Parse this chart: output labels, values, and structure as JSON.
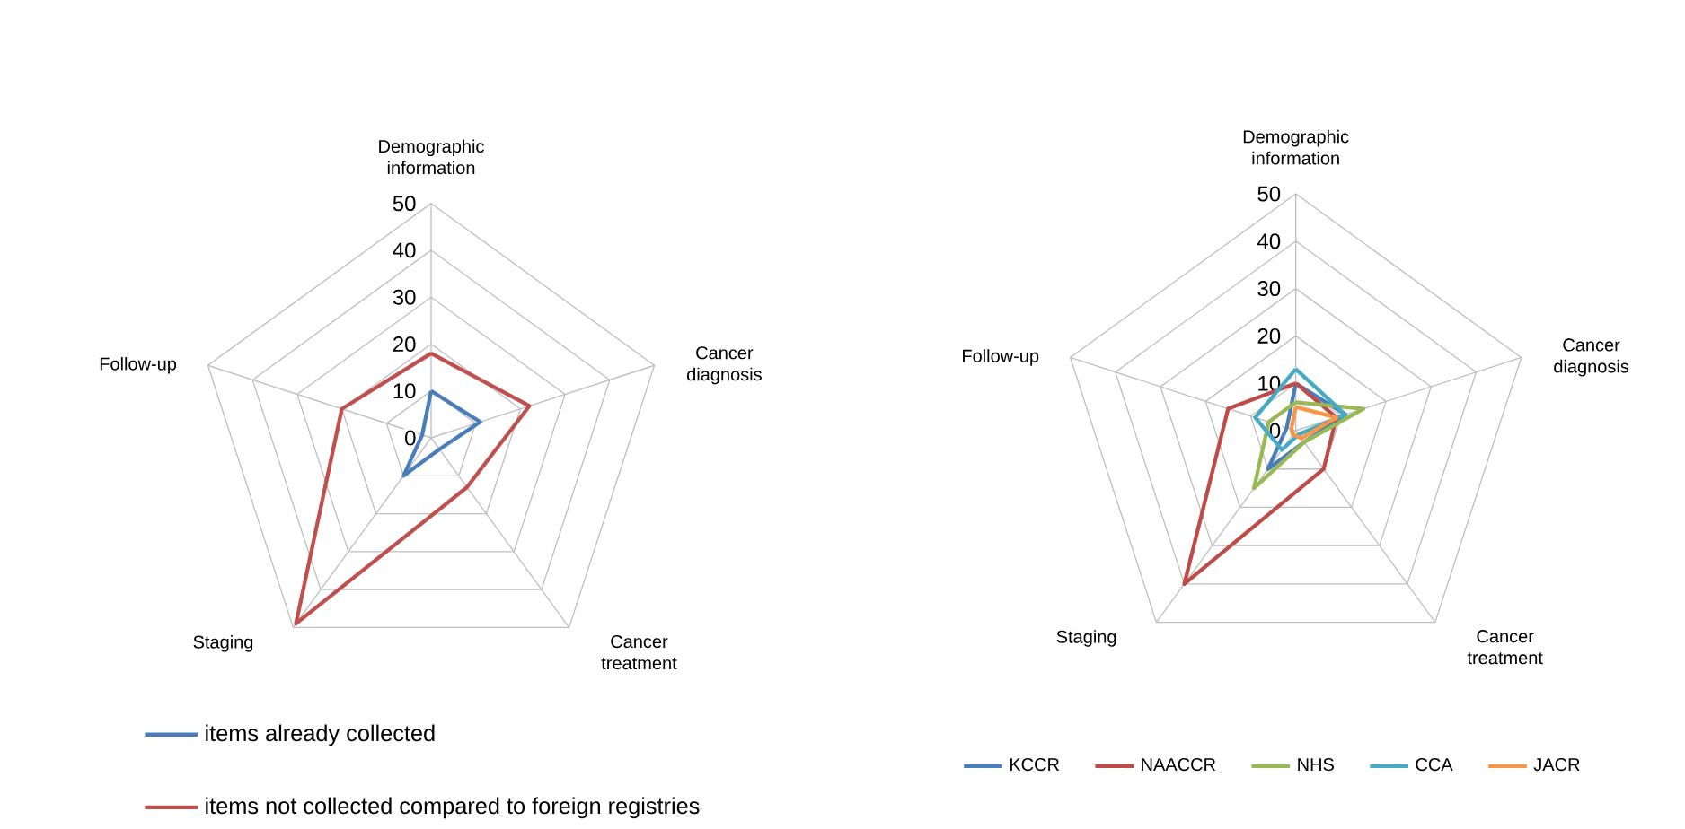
{
  "chart_data": [
    {
      "type": "radar",
      "categories": [
        "Demographic information",
        "Cancer diagnosis",
        "Cancer treatment",
        "Staging",
        "Follow-up"
      ],
      "ylim": [
        0,
        50
      ],
      "yticks": [
        0,
        10,
        20,
        30,
        40,
        50
      ],
      "grid": true,
      "legend": "bottom",
      "series": [
        {
          "name": "items already collected",
          "color": "#4a7ebb",
          "values": [
            10,
            11,
            3,
            10,
            2
          ]
        },
        {
          "name": "items not collected compared to foreign registries",
          "color": "#c0504d",
          "values": [
            18,
            22,
            13,
            49,
            20
          ]
        }
      ]
    },
    {
      "type": "radar",
      "categories": [
        "Demographic information",
        "Cancer diagnosis",
        "Cancer treatment",
        "Staging",
        "Follow-up"
      ],
      "ylim": [
        0,
        50
      ],
      "yticks": [
        0,
        10,
        20,
        30,
        40,
        50
      ],
      "grid": true,
      "legend": "bottom",
      "series": [
        {
          "name": "KCCR",
          "color": "#4a7ebb",
          "values": [
            10,
            11,
            3,
            10,
            2
          ]
        },
        {
          "name": "NAACCR",
          "color": "#be4b48",
          "values": [
            10,
            9,
            10,
            40,
            15
          ]
        },
        {
          "name": "NHS",
          "color": "#98b954",
          "values": [
            6,
            15,
            3,
            15,
            6
          ]
        },
        {
          "name": "CCA",
          "color": "#46aac5",
          "values": [
            13,
            11,
            1,
            5,
            9
          ]
        },
        {
          "name": "JACR",
          "color": "#f79646",
          "values": [
            5,
            9,
            2,
            1,
            1
          ]
        }
      ]
    }
  ]
}
